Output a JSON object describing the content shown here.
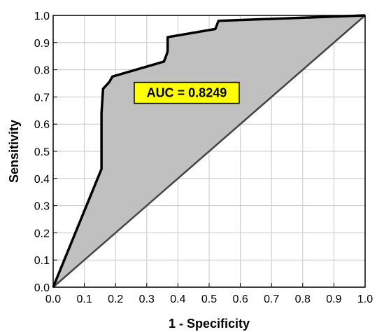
{
  "chart_data": {
    "type": "line",
    "title": "",
    "xlabel": "1 - Specificity",
    "ylabel": "Sensitivity",
    "xlim": [
      0.0,
      1.0
    ],
    "ylim": [
      0.0,
      1.0
    ],
    "x_ticks": [
      "0.0",
      "0.1",
      "0.2",
      "0.3",
      "0.4",
      "0.5",
      "0.6",
      "0.7",
      "0.8",
      "0.9",
      "1.0"
    ],
    "y_ticks": [
      "0.0",
      "0.1",
      "0.2",
      "0.3",
      "0.4",
      "0.5",
      "0.6",
      "0.7",
      "0.8",
      "0.9",
      "1.0"
    ],
    "grid": true,
    "series": [
      {
        "points": [
          [
            0.0,
            0.0
          ],
          [
            0.155,
            0.435
          ],
          [
            0.155,
            0.64
          ],
          [
            0.16,
            0.73
          ],
          [
            0.18,
            0.755
          ],
          [
            0.19,
            0.775
          ],
          [
            0.355,
            0.83
          ],
          [
            0.365,
            0.86
          ],
          [
            0.367,
            0.87
          ],
          [
            0.367,
            0.92
          ],
          [
            0.52,
            0.95
          ],
          [
            0.53,
            0.98
          ],
          [
            1.0,
            1.0
          ]
        ],
        "color": "#000000",
        "fill": "#c0c0c0"
      },
      {
        "points": [
          [
            0.0,
            0.0
          ],
          [
            1.0,
            1.0
          ]
        ],
        "color": "#444444"
      }
    ],
    "annotations": [
      {
        "text": "AUC = 0.8249",
        "x": 0.26,
        "y": 0.715,
        "background": "#ffff00",
        "border": "#000000"
      }
    ]
  }
}
